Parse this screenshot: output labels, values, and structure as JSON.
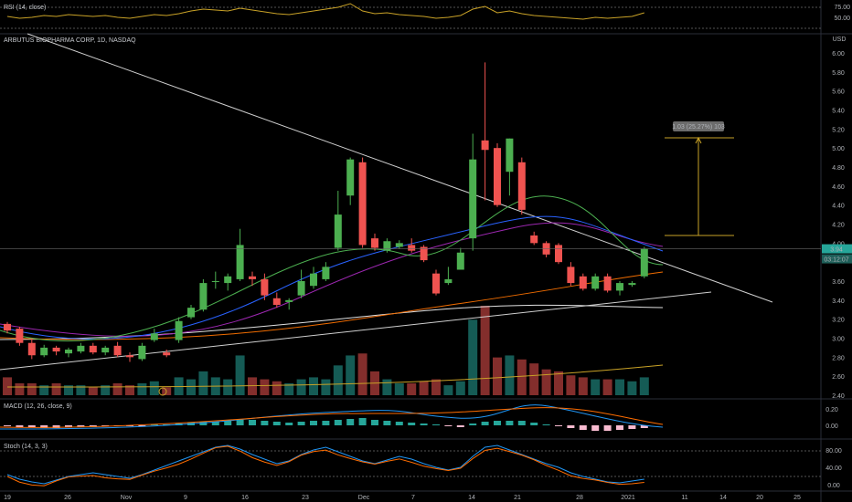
{
  "colors": {
    "background": "#000000",
    "up": "#26a69a",
    "up_bright": "#4caf50",
    "down": "#ef5350",
    "vol_up": "#26a69a",
    "vol_down": "#ef5350",
    "rsi_line": "#c9a227",
    "macd_line": "#2196f3",
    "signal_line": "#ff6d00",
    "stoch_k": "#2196f3",
    "stoch_d": "#ff6d00",
    "ma_fast": "#4caf50",
    "ma_mid": "#2962ff",
    "ma_slow": "#9c27b0",
    "ma_long": "#ef6c00",
    "ma_200": "#e0e0e0",
    "trendline": "#cfcfcf",
    "measure": "#c9a227",
    "last_price_bg": "#26a69a"
  },
  "panes": {
    "rsi_title": "RSI (14, close)",
    "main_title": "ARBUTUS BIOPHARMA CORP, 1D, NASDAQ",
    "macd_title": "MACD (12, 26, close, 9)",
    "stoch_title": "Stoch (14, 3, 3)",
    "currency": "USD"
  },
  "price_ticks": [
    "6.00",
    "5.80",
    "5.60",
    "5.40",
    "5.20",
    "5.00",
    "4.80",
    "4.60",
    "4.40",
    "4.20",
    "4.00",
    "3.60",
    "3.40",
    "3.20",
    "3.00",
    "2.80",
    "2.60",
    "2.40"
  ],
  "rsi_ticks": [
    "75.00",
    "50.00"
  ],
  "macd_ticks": [
    "0.20",
    "0.00"
  ],
  "stoch_ticks": [
    "80.00",
    "40.00",
    "0.00"
  ],
  "x_ticks": [
    "19",
    "26",
    "Nov",
    "9",
    "16",
    "23",
    "Dec",
    "7",
    "14",
    "21",
    "28",
    "2021",
    "11",
    "14",
    "20",
    "25"
  ],
  "last_price": "3.94",
  "countdown": "03:12:07",
  "measure_label": "1.03 (25.27%) 103",
  "chart_data": {
    "type": "candlestick",
    "title": "ARBUTUS BIOPHARMA CORP, 1D, NASDAQ",
    "ylim": [
      2.4,
      6.1
    ],
    "candles": [
      {
        "o": 3.15,
        "h": 3.17,
        "l": 3.05,
        "c": 3.08
      },
      {
        "o": 3.1,
        "h": 3.12,
        "l": 2.92,
        "c": 2.95
      },
      {
        "o": 2.95,
        "h": 3.0,
        "l": 2.78,
        "c": 2.82
      },
      {
        "o": 2.82,
        "h": 2.93,
        "l": 2.8,
        "c": 2.9
      },
      {
        "o": 2.9,
        "h": 2.92,
        "l": 2.82,
        "c": 2.86
      },
      {
        "o": 2.84,
        "h": 2.9,
        "l": 2.8,
        "c": 2.88
      },
      {
        "o": 2.86,
        "h": 2.95,
        "l": 2.84,
        "c": 2.92
      },
      {
        "o": 2.92,
        "h": 2.95,
        "l": 2.83,
        "c": 2.85
      },
      {
        "o": 2.85,
        "h": 2.92,
        "l": 2.82,
        "c": 2.9
      },
      {
        "o": 2.92,
        "h": 2.96,
        "l": 2.8,
        "c": 2.82
      },
      {
        "o": 2.82,
        "h": 2.85,
        "l": 2.75,
        "c": 2.8
      },
      {
        "o": 2.78,
        "h": 2.95,
        "l": 2.76,
        "c": 2.92
      },
      {
        "o": 2.98,
        "h": 3.1,
        "l": 2.96,
        "c": 3.05
      },
      {
        "o": 2.85,
        "h": 2.88,
        "l": 2.8,
        "c": 2.82
      },
      {
        "o": 2.98,
        "h": 3.22,
        "l": 2.95,
        "c": 3.18
      },
      {
        "o": 3.22,
        "h": 3.35,
        "l": 3.2,
        "c": 3.32
      },
      {
        "o": 3.3,
        "h": 3.62,
        "l": 3.28,
        "c": 3.58
      },
      {
        "o": 3.6,
        "h": 3.7,
        "l": 3.52,
        "c": 3.6
      },
      {
        "o": 3.58,
        "h": 3.68,
        "l": 3.5,
        "c": 3.65
      },
      {
        "o": 3.62,
        "h": 4.15,
        "l": 3.6,
        "c": 3.98
      },
      {
        "o": 3.65,
        "h": 3.7,
        "l": 3.55,
        "c": 3.62
      },
      {
        "o": 3.62,
        "h": 3.68,
        "l": 3.4,
        "c": 3.45
      },
      {
        "o": 3.42,
        "h": 3.48,
        "l": 3.32,
        "c": 3.35
      },
      {
        "o": 3.38,
        "h": 3.42,
        "l": 3.3,
        "c": 3.4
      },
      {
        "o": 3.45,
        "h": 3.72,
        "l": 3.42,
        "c": 3.6
      },
      {
        "o": 3.55,
        "h": 3.75,
        "l": 3.52,
        "c": 3.68
      },
      {
        "o": 3.62,
        "h": 3.8,
        "l": 3.6,
        "c": 3.75
      },
      {
        "o": 3.95,
        "h": 4.55,
        "l": 3.92,
        "c": 4.3
      },
      {
        "o": 4.5,
        "h": 4.9,
        "l": 4.4,
        "c": 4.88
      },
      {
        "o": 4.85,
        "h": 4.9,
        "l": 3.95,
        "c": 3.98
      },
      {
        "o": 4.05,
        "h": 4.1,
        "l": 3.92,
        "c": 3.95
      },
      {
        "o": 3.92,
        "h": 4.05,
        "l": 3.9,
        "c": 4.02
      },
      {
        "o": 3.96,
        "h": 4.03,
        "l": 3.94,
        "c": 4.0
      },
      {
        "o": 3.98,
        "h": 4.05,
        "l": 3.9,
        "c": 3.92
      },
      {
        "o": 3.96,
        "h": 3.98,
        "l": 3.8,
        "c": 3.82
      },
      {
        "o": 3.68,
        "h": 3.72,
        "l": 3.45,
        "c": 3.47
      },
      {
        "o": 3.58,
        "h": 3.75,
        "l": 3.56,
        "c": 3.62
      },
      {
        "o": 3.72,
        "h": 3.95,
        "l": 3.72,
        "c": 3.9
      },
      {
        "o": 4.05,
        "h": 5.15,
        "l": 3.92,
        "c": 4.88
      },
      {
        "o": 5.08,
        "h": 5.9,
        "l": 4.45,
        "c": 4.98
      },
      {
        "o": 5.0,
        "h": 5.05,
        "l": 4.38,
        "c": 4.4
      },
      {
        "o": 4.75,
        "h": 5.1,
        "l": 4.5,
        "c": 5.1
      },
      {
        "o": 4.85,
        "h": 4.9,
        "l": 4.3,
        "c": 4.35
      },
      {
        "o": 4.08,
        "h": 4.12,
        "l": 3.98,
        "c": 4.0
      },
      {
        "o": 4.0,
        "h": 4.02,
        "l": 3.85,
        "c": 3.88
      },
      {
        "o": 3.98,
        "h": 4.0,
        "l": 3.78,
        "c": 3.8
      },
      {
        "o": 3.75,
        "h": 3.8,
        "l": 3.55,
        "c": 3.58
      },
      {
        "o": 3.65,
        "h": 3.68,
        "l": 3.5,
        "c": 3.52
      },
      {
        "o": 3.52,
        "h": 3.68,
        "l": 3.5,
        "c": 3.65
      },
      {
        "o": 3.65,
        "h": 3.68,
        "l": 3.48,
        "c": 3.5
      },
      {
        "o": 3.5,
        "h": 3.6,
        "l": 3.45,
        "c": 3.58
      },
      {
        "o": 3.56,
        "h": 3.6,
        "l": 3.54,
        "c": 3.58
      },
      {
        "o": 3.65,
        "h": 3.96,
        "l": 3.63,
        "c": 3.94
      }
    ],
    "volume": [
      0.9,
      0.6,
      0.6,
      0.5,
      0.6,
      0.5,
      0.5,
      0.4,
      0.5,
      0.6,
      0.5,
      0.6,
      0.7,
      0.4,
      0.9,
      0.8,
      1.2,
      0.9,
      0.8,
      2.0,
      0.9,
      0.8,
      0.7,
      0.6,
      0.8,
      0.9,
      0.8,
      1.5,
      2.0,
      2.1,
      1.2,
      0.8,
      0.6,
      0.6,
      0.7,
      0.8,
      0.5,
      0.7,
      3.8,
      4.5,
      1.9,
      2.0,
      1.8,
      1.6,
      1.3,
      1.2,
      1.0,
      0.9,
      0.8,
      0.8,
      0.8,
      0.7,
      0.9
    ]
  }
}
